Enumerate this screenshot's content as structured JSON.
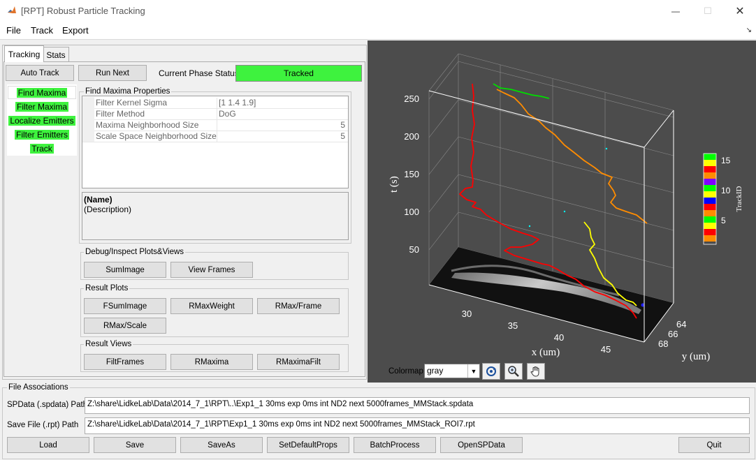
{
  "window": {
    "title": "[RPT] Robust Particle Tracking",
    "minimize_glyph": "—",
    "maximize_glyph": "☐",
    "close_glyph": "✕"
  },
  "menu": [
    "File",
    "Track",
    "Export"
  ],
  "tabs": [
    "Tracking",
    "Stats"
  ],
  "toolbar": {
    "auto_track": "Auto Track",
    "run_next": "Run Next",
    "status_label": "Current Phase Status:",
    "status_value": "Tracked",
    "status_color": "#3ef23e"
  },
  "phases": [
    "Find Maxima",
    "Filter Maxima",
    "Localize Emitters",
    "Filter Emitters",
    "Track"
  ],
  "find_maxima": {
    "group_label": "Find Maxima Properties",
    "properties": [
      {
        "name": "Filter Kernel Sigma",
        "value": "[1 1.4 1.9]"
      },
      {
        "name": "Filter Method",
        "value": "DoG"
      },
      {
        "name": "Maxima Neighborhood Size",
        "value": "5"
      },
      {
        "name": "Scale Space Neighborhood Size",
        "value": "5"
      }
    ],
    "desc_name": "(Name)",
    "desc_text": "(Description)"
  },
  "debug_group": {
    "label": "Debug/Inspect Plots&Views",
    "buttons": [
      "SumImage",
      "View Frames"
    ]
  },
  "result_plots": {
    "label": "Result Plots",
    "buttons": [
      "FSumImage",
      "RMaxWeight",
      "RMax/Frame",
      "RMax/Scale"
    ]
  },
  "result_views": {
    "label": "Result Views",
    "buttons": [
      "FiltFrames",
      "RMaxima",
      "RMaximaFilt"
    ]
  },
  "plot": {
    "background": "#4c4c4c",
    "zlabel": "t (s)",
    "xlabel": "x (um)",
    "ylabel": "y (um)",
    "zticks": [
      "50",
      "100",
      "150",
      "200",
      "250"
    ],
    "xticks": [
      "30",
      "35",
      "40",
      "45"
    ],
    "yticks": [
      "64",
      "66",
      "68"
    ],
    "colorbar_label": "TrackID",
    "colorbar_ticks": [
      "5",
      "10",
      "15"
    ],
    "track_colors": [
      "#ff0000",
      "#ff8c00",
      "#ffff00",
      "#00ff00",
      "#0000ff",
      "#8000ff"
    ]
  },
  "colormap": {
    "label": "Colormap:",
    "value": "gray"
  },
  "plot_tools": [
    "rotate-3d-icon",
    "zoom-icon",
    "pan-hand-icon"
  ],
  "file_assoc": {
    "group_label": "File Associations",
    "spdata_label": "SPData (.spdata) Path",
    "spdata_value": "Z:\\share\\LidkeLab\\Data\\2014_7_1\\RPT\\..\\Exp1_1 30ms exp 0ms int ND2 next 5000frames_MMStack.spdata",
    "save_label": "Save File (.rpt) Path",
    "save_value": "Z:\\share\\LidkeLab\\Data\\2014_7_1\\RPT\\Exp1_1 30ms exp 0ms int ND2 next 5000frames_MMStack_ROI7.rpt"
  },
  "bottom_buttons": [
    "Load",
    "Save",
    "SaveAs",
    "SetDefaultProps",
    "BatchProcess",
    "OpenSPData"
  ],
  "quit_label": "Quit"
}
